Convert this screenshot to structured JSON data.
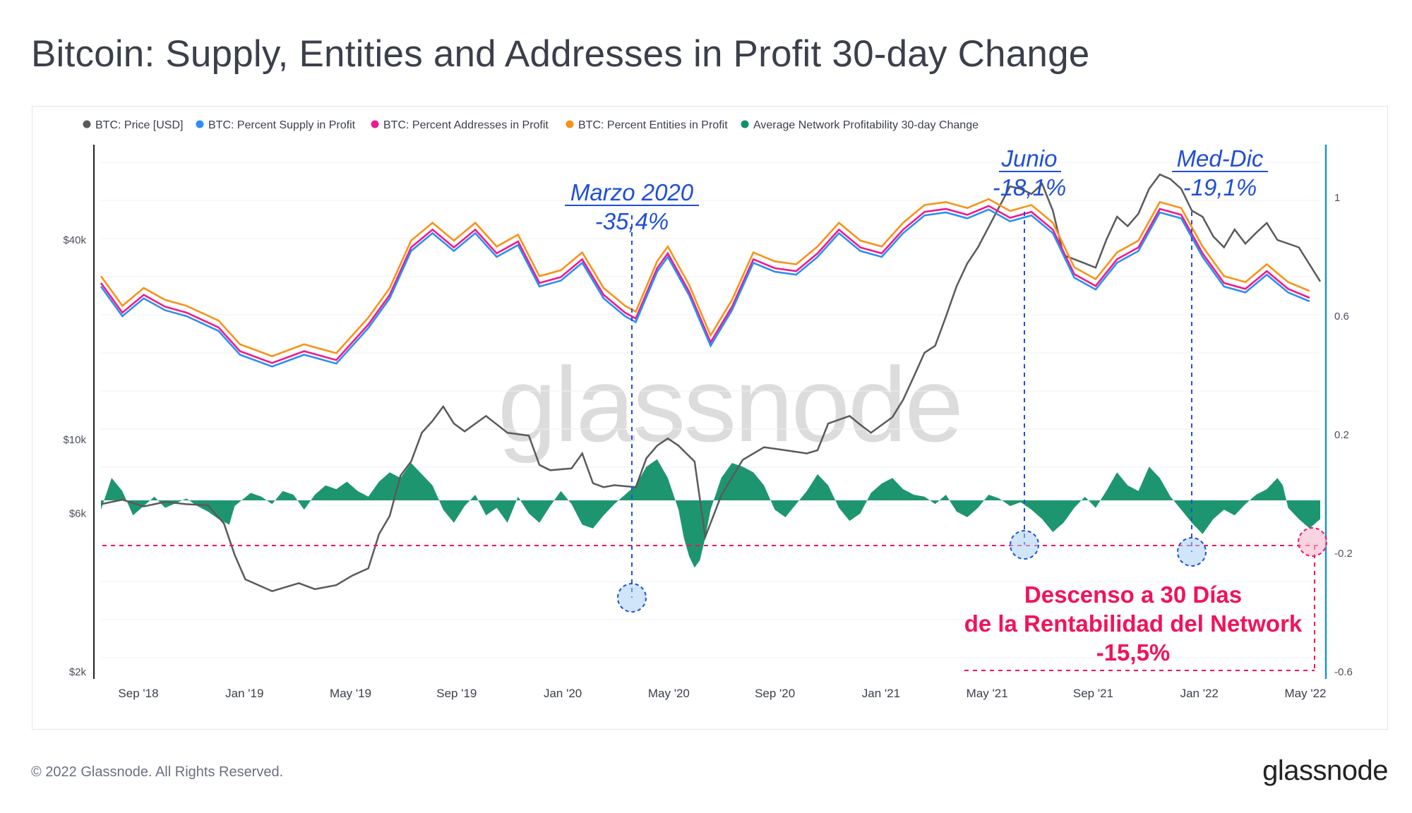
{
  "title": "Bitcoin: Supply, Entities and Addresses in Profit 30-day Change",
  "footer": {
    "copyright": "© 2022 Glassnode. All Rights Reserved.",
    "logo": "glassnode"
  },
  "watermark": "glassnode",
  "chart_data": {
    "type": "line",
    "legend": [
      {
        "name": "BTC: Price [USD]",
        "color": "#5a5a5a"
      },
      {
        "name": "BTC: Percent Supply in Profit",
        "color": "#2b8ff5"
      },
      {
        "name": "BTC: Percent Addresses in Profit",
        "color": "#ee1a8e"
      },
      {
        "name": "BTC: Percent Entities in Profit",
        "color": "#f7931a"
      },
      {
        "name": "Average Network Profitability 30-day Change",
        "color": "#119068"
      }
    ],
    "left_axis": {
      "scale": "log",
      "ticks": [
        "$40k",
        "$10k",
        "$6k",
        "$2k"
      ],
      "tick_values": [
        40000,
        10000,
        6000,
        2000
      ]
    },
    "right_axis": {
      "ticks": [
        "1",
        "0.6",
        "0.2",
        "-0.2",
        "-0.6"
      ],
      "ylim": [
        -0.6,
        1.0
      ]
    },
    "x_ticks": [
      "Sep '18",
      "Jan '19",
      "May '19",
      "Sep '19",
      "Jan '20",
      "May '20",
      "Sep '20",
      "Jan '21",
      "May '21",
      "Sep '21",
      "Jan '22",
      "May '22"
    ],
    "x_range": [
      "2018-07-15",
      "2022-05-15"
    ],
    "series": {
      "price": [
        [
          0,
          6400
        ],
        [
          0.02,
          6600
        ],
        [
          0.04,
          6300
        ],
        [
          0.06,
          6500
        ],
        [
          0.08,
          6400
        ],
        [
          0.1,
          6350
        ],
        [
          0.115,
          5600
        ],
        [
          0.125,
          4500
        ],
        [
          0.135,
          3800
        ],
        [
          0.16,
          3500
        ],
        [
          0.185,
          3700
        ],
        [
          0.2,
          3550
        ],
        [
          0.22,
          3650
        ],
        [
          0.235,
          3900
        ],
        [
          0.25,
          4100
        ],
        [
          0.26,
          5200
        ],
        [
          0.27,
          5900
        ],
        [
          0.28,
          7800
        ],
        [
          0.29,
          8600
        ],
        [
          0.3,
          10500
        ],
        [
          0.31,
          11400
        ],
        [
          0.32,
          12600
        ],
        [
          0.33,
          11200
        ],
        [
          0.34,
          10600
        ],
        [
          0.36,
          11800
        ],
        [
          0.38,
          10500
        ],
        [
          0.4,
          10300
        ],
        [
          0.41,
          8400
        ],
        [
          0.42,
          8100
        ],
        [
          0.44,
          8200
        ],
        [
          0.45,
          9100
        ],
        [
          0.46,
          7400
        ],
        [
          0.47,
          7200
        ],
        [
          0.48,
          7300
        ],
        [
          0.5,
          7200
        ],
        [
          0.51,
          8800
        ],
        [
          0.52,
          9600
        ],
        [
          0.53,
          10100
        ],
        [
          0.54,
          9600
        ],
        [
          0.555,
          8600
        ],
        [
          0.565,
          5100
        ],
        [
          0.58,
          6800
        ],
        [
          0.6,
          8700
        ],
        [
          0.62,
          9500
        ],
        [
          0.64,
          9300
        ],
        [
          0.66,
          9100
        ],
        [
          0.67,
          9300
        ],
        [
          0.68,
          11200
        ],
        [
          0.7,
          11800
        ],
        [
          0.71,
          11100
        ],
        [
          0.72,
          10500
        ],
        [
          0.74,
          11700
        ],
        [
          0.75,
          13200
        ],
        [
          0.76,
          15500
        ],
        [
          0.77,
          18300
        ],
        [
          0.78,
          19200
        ],
        [
          0.79,
          23500
        ],
        [
          0.8,
          29000
        ],
        [
          0.81,
          34000
        ],
        [
          0.82,
          38000
        ],
        [
          0.835,
          47000
        ],
        [
          0.85,
          58000
        ],
        [
          0.86,
          57000
        ],
        [
          0.87,
          55000
        ],
        [
          0.88,
          59000
        ],
        [
          0.89,
          49000
        ],
        [
          0.9,
          36000
        ],
        [
          0.91,
          35000
        ],
        [
          0.92,
          34000
        ],
        [
          0.93,
          33000
        ],
        [
          0.94,
          40000
        ],
        [
          0.95,
          47000
        ],
        [
          0.96,
          44000
        ],
        [
          0.97,
          48000
        ],
        [
          0.98,
          57000
        ],
        [
          0.99,
          63000
        ],
        [
          1.0,
          61000
        ],
        [
          1.01,
          57000
        ],
        [
          1.02,
          49000
        ],
        [
          1.03,
          47000
        ],
        [
          1.04,
          41000
        ],
        [
          1.05,
          38000
        ],
        [
          1.06,
          43000
        ],
        [
          1.07,
          39000
        ],
        [
          1.08,
          42000
        ],
        [
          1.09,
          45000
        ],
        [
          1.1,
          40000
        ],
        [
          1.12,
          38000
        ],
        [
          1.14,
          30000
        ]
      ],
      "supply_in_profit": [
        [
          0,
          0.7
        ],
        [
          0.02,
          0.6
        ],
        [
          0.04,
          0.66
        ],
        [
          0.06,
          0.62
        ],
        [
          0.08,
          0.6
        ],
        [
          0.11,
          0.55
        ],
        [
          0.13,
          0.47
        ],
        [
          0.16,
          0.43
        ],
        [
          0.19,
          0.47
        ],
        [
          0.22,
          0.44
        ],
        [
          0.25,
          0.56
        ],
        [
          0.27,
          0.66
        ],
        [
          0.29,
          0.82
        ],
        [
          0.31,
          0.88
        ],
        [
          0.33,
          0.82
        ],
        [
          0.35,
          0.88
        ],
        [
          0.37,
          0.8
        ],
        [
          0.39,
          0.84
        ],
        [
          0.41,
          0.7
        ],
        [
          0.43,
          0.72
        ],
        [
          0.45,
          0.78
        ],
        [
          0.47,
          0.66
        ],
        [
          0.49,
          0.6
        ],
        [
          0.5,
          0.58
        ],
        [
          0.52,
          0.75
        ],
        [
          0.53,
          0.8
        ],
        [
          0.55,
          0.67
        ],
        [
          0.57,
          0.5
        ],
        [
          0.59,
          0.62
        ],
        [
          0.61,
          0.78
        ],
        [
          0.63,
          0.75
        ],
        [
          0.65,
          0.74
        ],
        [
          0.67,
          0.8
        ],
        [
          0.69,
          0.88
        ],
        [
          0.71,
          0.82
        ],
        [
          0.73,
          0.8
        ],
        [
          0.75,
          0.88
        ],
        [
          0.77,
          0.94
        ],
        [
          0.79,
          0.95
        ],
        [
          0.81,
          0.93
        ],
        [
          0.83,
          0.96
        ],
        [
          0.85,
          0.92
        ],
        [
          0.87,
          0.94
        ],
        [
          0.89,
          0.88
        ],
        [
          0.91,
          0.73
        ],
        [
          0.93,
          0.69
        ],
        [
          0.95,
          0.78
        ],
        [
          0.97,
          0.82
        ],
        [
          0.99,
          0.95
        ],
        [
          1.01,
          0.93
        ],
        [
          1.03,
          0.8
        ],
        [
          1.05,
          0.7
        ],
        [
          1.07,
          0.68
        ],
        [
          1.09,
          0.74
        ],
        [
          1.11,
          0.68
        ],
        [
          1.13,
          0.65
        ]
      ]
    },
    "annotations": [
      {
        "title": "Marzo 2020",
        "value": "-35,4%"
      },
      {
        "title": "Junio",
        "value": "-18,1%"
      },
      {
        "title": "Med-Dic",
        "value": "-19,1%"
      },
      {
        "line1": "Descenso a 30 Días",
        "line2": "de la Rentabilidad del Network",
        "value": "-15,5%"
      }
    ]
  }
}
